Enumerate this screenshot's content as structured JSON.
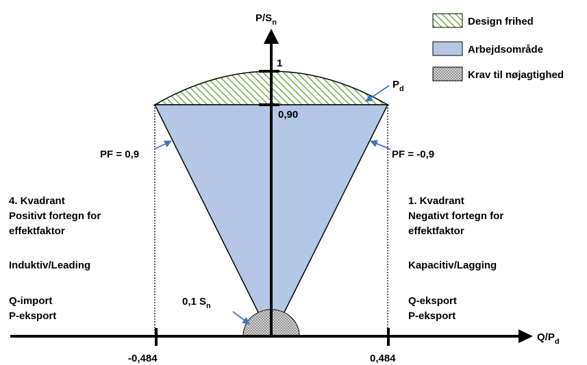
{
  "legend": {
    "items": [
      {
        "label": "Design frihed",
        "pattern": "hatch"
      },
      {
        "label": "Arbejdsområde",
        "pattern": "solid"
      },
      {
        "label": "Krav til nøjagtighed",
        "pattern": "dots"
      }
    ]
  },
  "axes": {
    "y_label_main": "P/S",
    "y_label_sub": "n",
    "x_label_main": "Q/P",
    "x_label_sub": "d",
    "y_tick_top": "1",
    "y_tick_mid": "0,90",
    "x_tick_left": "-0,484",
    "x_tick_right": "0,484"
  },
  "annotations": {
    "pd_main": "P",
    "pd_sub": "d",
    "pf_left": "PF = 0,9",
    "pf_right": "PF = -0,9",
    "sn_main": "0,1 S",
    "sn_sub": "n"
  },
  "left_quadrant": {
    "lines": [
      "4. Kvadrant",
      "Positivt fortegn for",
      "effektfaktor",
      "",
      "Induktiv/Leading",
      "",
      "Q-import",
      "P-eksport"
    ]
  },
  "right_quadrant": {
    "lines": [
      "1. Kvadrant",
      "Negativt fortegn for",
      "effektfaktor",
      "",
      "Kapacitiv/Lagging",
      "",
      "Q-eksport",
      "P-eksport"
    ]
  },
  "colors": {
    "work_area": "#b4c7e7",
    "design_hatch": "#70ad47",
    "dots": "#7f7f7f",
    "arrow_annot": "#4472c4"
  }
}
